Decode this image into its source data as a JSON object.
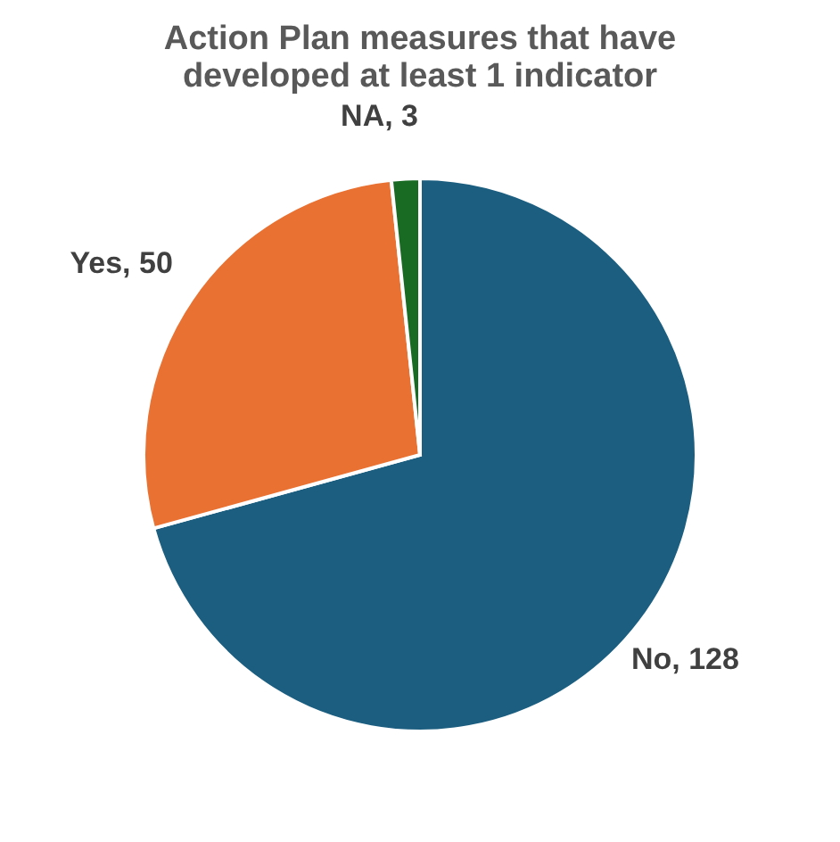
{
  "chart_data": {
    "type": "pie",
    "title": [
      "Action Plan measures that have",
      "developed at least 1 indicator"
    ],
    "categories": [
      "No",
      "Yes",
      "NA"
    ],
    "values": [
      128,
      50,
      3
    ],
    "colors": [
      "#1b5e80",
      "#e97132",
      "#196b24"
    ],
    "value_labels": [
      ", 128",
      ", 50",
      ", 3"
    ],
    "legend": false
  }
}
